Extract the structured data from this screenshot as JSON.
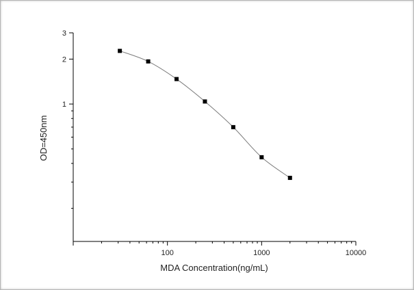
{
  "chart_data": {
    "type": "scatter",
    "title": "",
    "xlabel": "MDA Concentration(ng/mL)",
    "ylabel": "OD=450nm",
    "x_scale": "log",
    "y_scale": "log",
    "xlim": [
      10,
      10000
    ],
    "ylim": [
      0.12,
      3
    ],
    "x_tick_labels": [
      {
        "value": 100,
        "label": "100"
      },
      {
        "value": 1000,
        "label": "1000"
      },
      {
        "value": 10000,
        "label": "10000"
      }
    ],
    "y_tick_labels": [
      {
        "value": 1,
        "label": "1"
      },
      {
        "value": 2,
        "label": "2"
      },
      {
        "value": 3,
        "label": "3"
      }
    ],
    "grid": false,
    "legend": "none",
    "series": [
      {
        "x": [
          31.25,
          62.5,
          125,
          250,
          500,
          1000,
          2000
        ],
        "y": [
          2.27,
          1.93,
          1.47,
          1.04,
          0.7,
          0.44,
          0.32
        ],
        "marker": "square",
        "color": "#000000",
        "line_color": "#7a7a7a"
      }
    ]
  }
}
